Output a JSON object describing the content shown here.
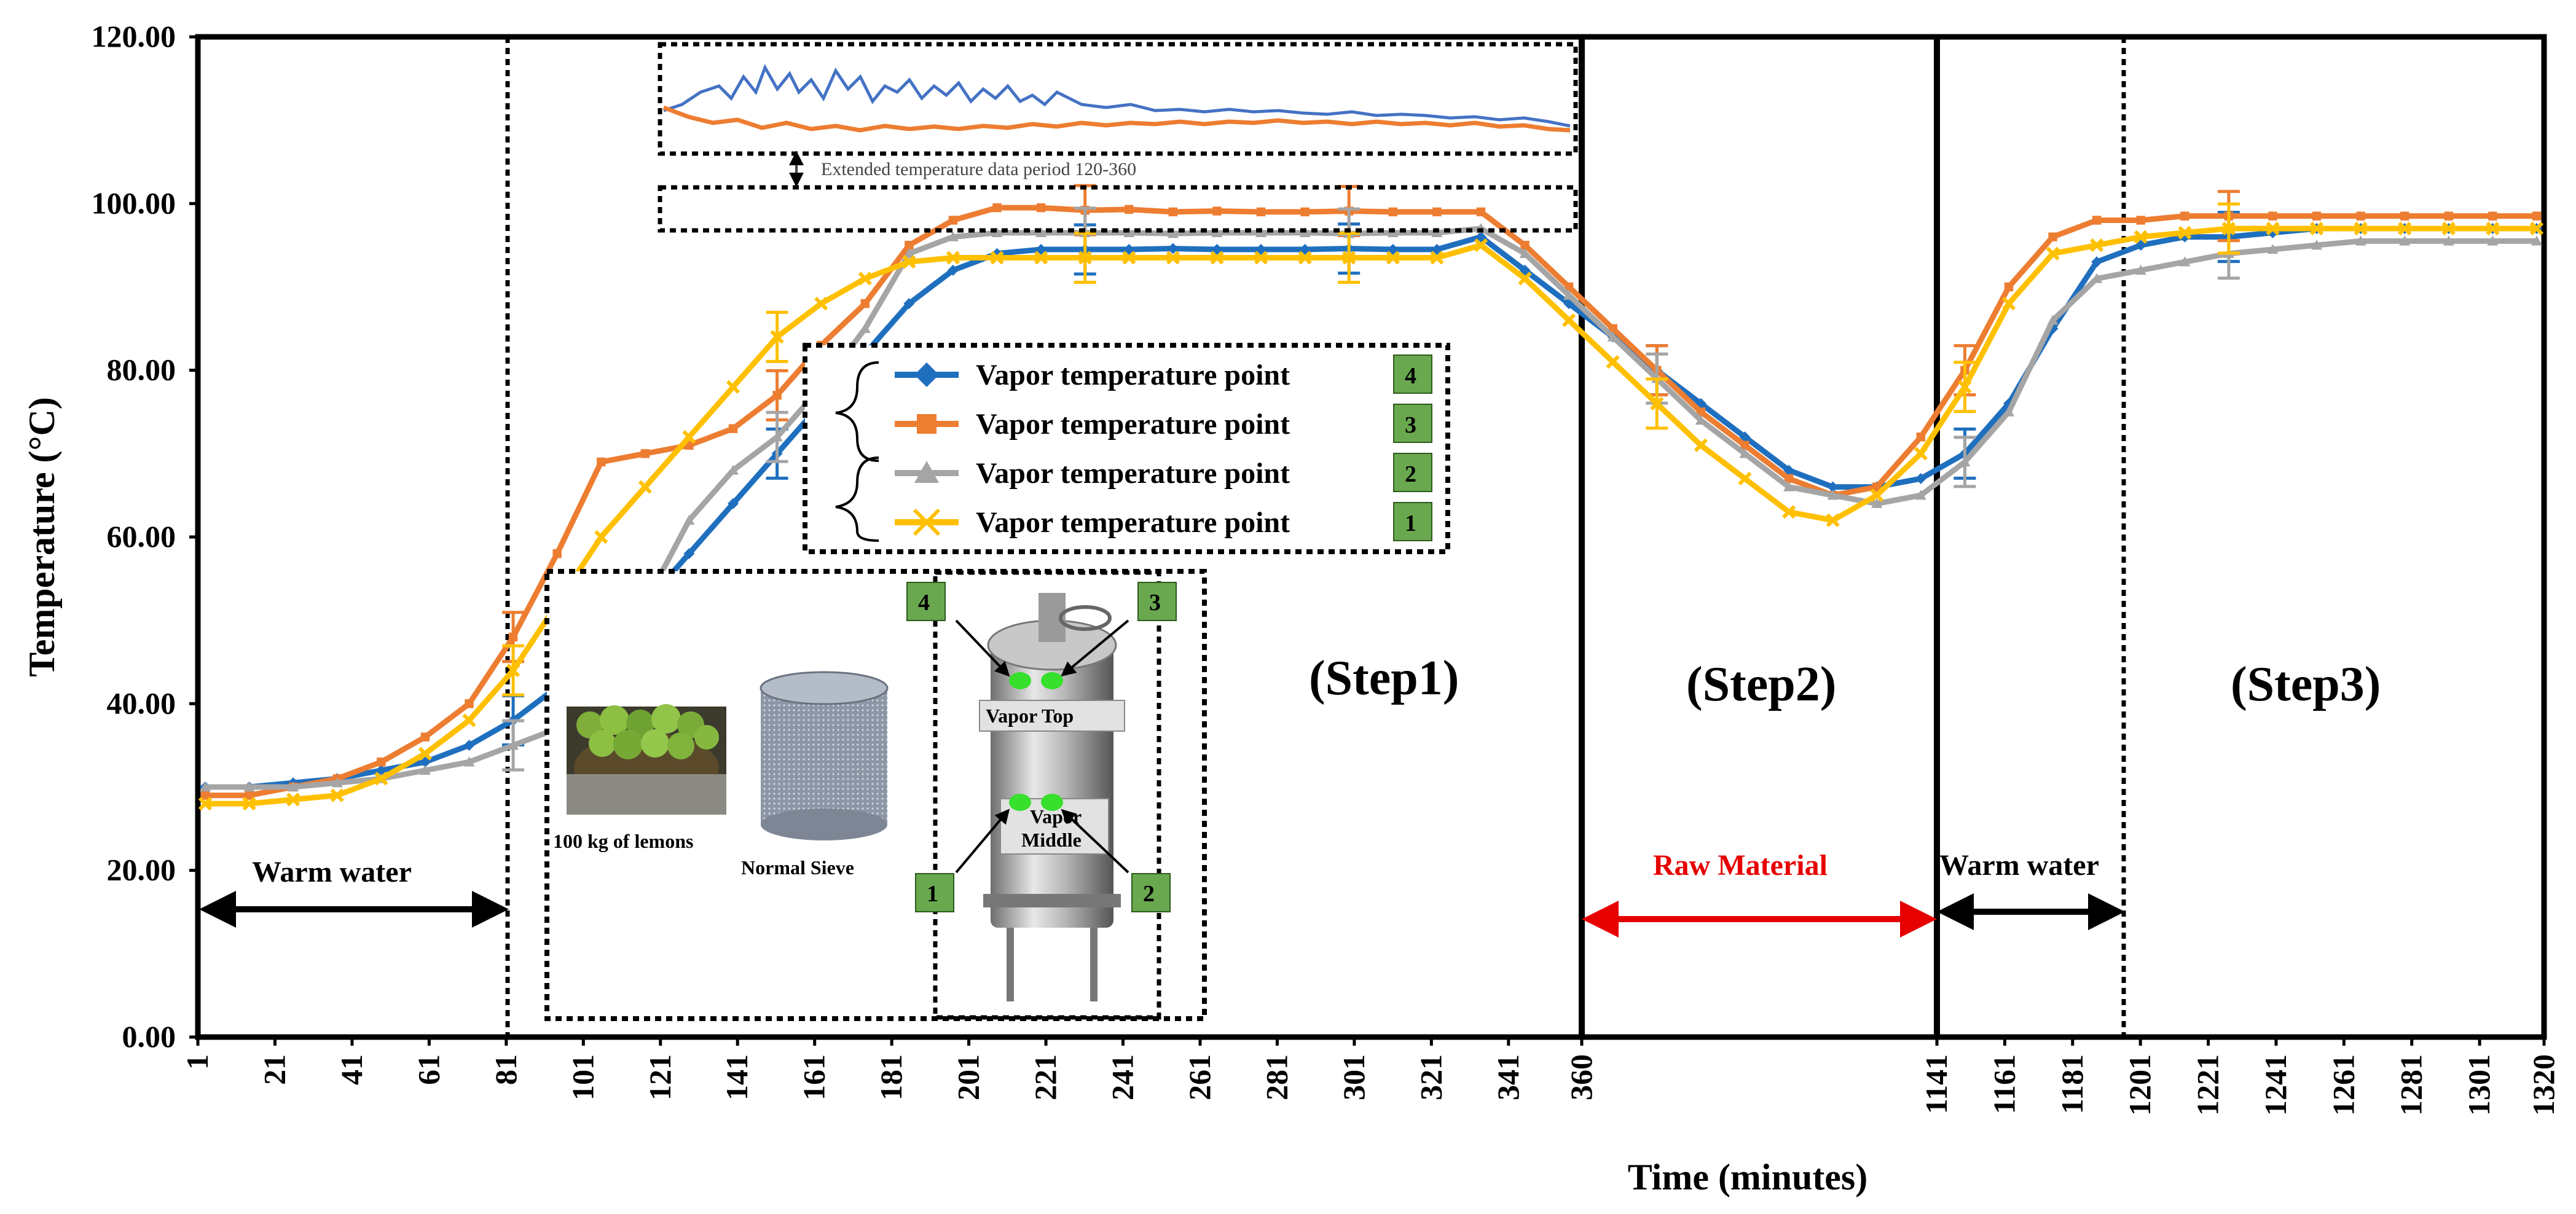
{
  "chart_data": {
    "type": "line",
    "ylabel": "Temperature (°C)",
    "xlabel": "Time (minutes)",
    "ylim": [
      0,
      120
    ],
    "y_ticks": [
      "0.00",
      "20.00",
      "40.00",
      "60.00",
      "80.00",
      "100.00",
      "120.00"
    ],
    "x_ticks": [
      "1",
      "21",
      "41",
      "61",
      "81",
      "101",
      "121",
      "141",
      "161",
      "181",
      "201",
      "221",
      "241",
      "261",
      "281",
      "301",
      "321",
      "341",
      "360",
      "1141",
      "1161",
      "1181",
      "1201",
      "1221",
      "1241",
      "1261",
      "1281",
      "1301",
      "1320"
    ],
    "series": [
      {
        "name": "Vapor temperature point",
        "badge": "4",
        "color": "#1F6FBF",
        "marker": "diamond",
        "values": [
          30,
          30,
          30.5,
          31,
          32,
          33,
          35,
          38,
          42,
          47,
          52,
          58,
          64,
          70,
          76,
          82,
          88,
          92,
          94,
          94.5,
          94.5,
          94.5,
          94.6,
          94.5,
          94.5,
          94.5,
          94.6,
          94.5,
          94.5,
          96,
          92,
          88,
          84,
          80,
          76,
          72,
          68,
          66,
          66,
          67,
          70,
          76,
          85,
          93,
          95,
          96,
          96,
          96.5,
          97,
          97,
          97,
          97,
          97,
          97
        ]
      },
      {
        "name": "Vapor temperature point",
        "badge": "3",
        "color": "#ED7D31",
        "marker": "square",
        "values": [
          29,
          29,
          30,
          31,
          33,
          36,
          40,
          48,
          58,
          69,
          70,
          71,
          73,
          77,
          83,
          88,
          95,
          98,
          99.5,
          99.5,
          99.2,
          99.3,
          99.0,
          99.1,
          99.0,
          99.0,
          99.1,
          99.0,
          99.0,
          99,
          95,
          90,
          85,
          80,
          75,
          71,
          67,
          65,
          66,
          72,
          80,
          90,
          96,
          98,
          98,
          98.5,
          98.5,
          98.5,
          98.5,
          98.5,
          98.5,
          98.5,
          98.5,
          98.5
        ]
      },
      {
        "name": "Vapor temperature point",
        "badge": "2",
        "color": "#A5A5A5",
        "marker": "triangle",
        "values": [
          30,
          30,
          30,
          30.5,
          31,
          32,
          33,
          35,
          37,
          44,
          52,
          62,
          68,
          72,
          78,
          85,
          94,
          96,
          96.5,
          96.5,
          96.5,
          96.5,
          96.4,
          96.5,
          96.5,
          96.5,
          96.4,
          96.5,
          96.5,
          97,
          94,
          89,
          84,
          79,
          74,
          70,
          66,
          65,
          64,
          65,
          69,
          75,
          86,
          91,
          92,
          93,
          94,
          94.5,
          95,
          95.5,
          95.5,
          95.5,
          95.5,
          95.5
        ]
      },
      {
        "name": "Vapor temperature point",
        "badge": "1",
        "color": "#FFC000",
        "marker": "x",
        "values": [
          28,
          28,
          28.5,
          29,
          31,
          34,
          38,
          44,
          52,
          60,
          66,
          72,
          78,
          84,
          88,
          91,
          93,
          93.5,
          93.5,
          93.5,
          93.5,
          93.5,
          93.5,
          93.5,
          93.5,
          93.5,
          93.5,
          93.5,
          93.5,
          95,
          91,
          86,
          81,
          76,
          71,
          67,
          63,
          62,
          65,
          70,
          78,
          88,
          94,
          95,
          96,
          96.5,
          97,
          97,
          97,
          97,
          97,
          97,
          97,
          97
        ]
      }
    ],
    "legend_label": "Vapor temperature point",
    "legend_badges": [
      "4",
      "3",
      "2",
      "1"
    ],
    "steps": [
      "(Step1)",
      "(Step2)",
      "(Step3)"
    ],
    "annotations": {
      "warm_water_1": "Warm water",
      "raw_material": "Raw Material",
      "warm_water_2": "Warm water",
      "inset_zoom": "Extended temperature data period 120-360",
      "lemons": "100 kg of lemons",
      "sieve": "Normal Sieve",
      "vapor_top": "Vapor Top",
      "vapor_middle": "Vapor Middle",
      "vapor_middle_l1": "Vapor",
      "vapor_middle_l2": "Middle",
      "device_badges": [
        "4",
        "3",
        "1",
        "2"
      ]
    }
  }
}
